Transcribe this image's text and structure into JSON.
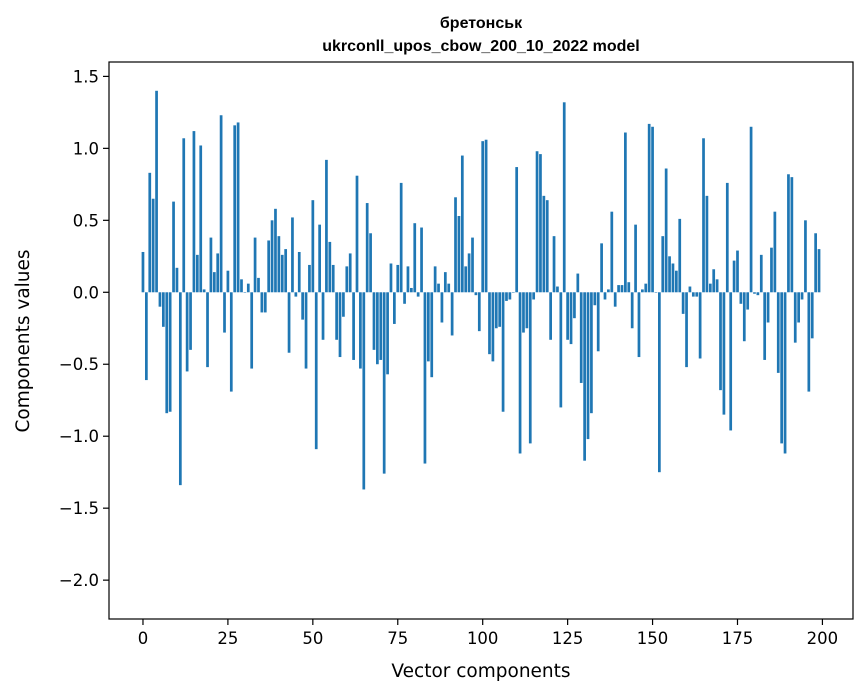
{
  "chart_data": {
    "type": "bar",
    "title_line1": "бретонськ",
    "title_line2": "ukrconll_upos_cbow_200_10_2022 model",
    "xlabel": "Vector components",
    "ylabel": "Components values",
    "xlim": [
      -10,
      209
    ],
    "ylim": [
      -2.27,
      1.6
    ],
    "x_ticks": [
      0,
      25,
      50,
      75,
      100,
      125,
      150,
      175,
      200
    ],
    "y_ticks": [
      -2.0,
      -1.5,
      -1.0,
      -0.5,
      0.0,
      0.5,
      1.0,
      1.5
    ],
    "x_tick_labels": [
      "0",
      "25",
      "50",
      "75",
      "100",
      "125",
      "150",
      "175",
      "200"
    ],
    "y_tick_labels": [
      "−2.0",
      "−1.5",
      "−1.0",
      "−0.5",
      "0.0",
      "0.5",
      "1.0",
      "1.5"
    ],
    "bar_color": "#1f77b4",
    "grid": false,
    "x": [
      0,
      1,
      2,
      3,
      4,
      5,
      6,
      7,
      8,
      9,
      10,
      11,
      12,
      13,
      14,
      15,
      16,
      17,
      18,
      19,
      20,
      21,
      22,
      23,
      24,
      25,
      26,
      27,
      28,
      29,
      30,
      31,
      32,
      33,
      34,
      35,
      36,
      37,
      38,
      39,
      40,
      41,
      42,
      43,
      44,
      45,
      46,
      47,
      48,
      49,
      50,
      51,
      52,
      53,
      54,
      55,
      56,
      57,
      58,
      59,
      60,
      61,
      62,
      63,
      64,
      65,
      66,
      67,
      68,
      69,
      70,
      71,
      72,
      73,
      74,
      75,
      76,
      77,
      78,
      79,
      80,
      81,
      82,
      83,
      84,
      85,
      86,
      87,
      88,
      89,
      90,
      91,
      92,
      93,
      94,
      95,
      96,
      97,
      98,
      99,
      100,
      101,
      102,
      103,
      104,
      105,
      106,
      107,
      108,
      109,
      110,
      111,
      112,
      113,
      114,
      115,
      116,
      117,
      118,
      119,
      120,
      121,
      122,
      123,
      124,
      125,
      126,
      127,
      128,
      129,
      130,
      131,
      132,
      133,
      134,
      135,
      136,
      137,
      138,
      139,
      140,
      141,
      142,
      143,
      144,
      145,
      146,
      147,
      148,
      149,
      150,
      151,
      152,
      153,
      154,
      155,
      156,
      157,
      158,
      159,
      160,
      161,
      162,
      163,
      164,
      165,
      166,
      167,
      168,
      169,
      170,
      171,
      172,
      173,
      174,
      175,
      176,
      177,
      178,
      179,
      180,
      181,
      182,
      183,
      184,
      185,
      186,
      187,
      188,
      189,
      190,
      191,
      192,
      193,
      194,
      195,
      196,
      197,
      198,
      199
    ],
    "values": [
      0.28,
      -0.61,
      0.83,
      0.65,
      1.4,
      -0.1,
      -0.24,
      -0.84,
      -0.83,
      0.63,
      0.17,
      -1.34,
      1.07,
      -0.55,
      -0.4,
      1.12,
      0.26,
      1.02,
      0.02,
      -0.52,
      0.38,
      0.14,
      0.27,
      1.23,
      -0.28,
      0.15,
      -0.69,
      1.16,
      1.18,
      0.09,
      0.0,
      0.06,
      -0.53,
      0.38,
      0.1,
      -0.14,
      -0.14,
      0.36,
      0.5,
      0.58,
      0.39,
      0.26,
      0.3,
      -0.42,
      0.52,
      -0.03,
      0.28,
      -0.19,
      -0.53,
      0.19,
      0.64,
      -1.09,
      0.47,
      -0.33,
      0.92,
      0.35,
      0.19,
      -0.33,
      -0.45,
      -0.17,
      0.18,
      0.27,
      -0.47,
      0.81,
      -0.53,
      -1.37,
      0.62,
      0.41,
      -0.4,
      -0.5,
      -0.47,
      -1.26,
      -0.57,
      0.2,
      -0.22,
      0.19,
      0.76,
      -0.08,
      0.18,
      0.03,
      0.48,
      -0.03,
      0.45,
      -1.19,
      -0.48,
      -0.59,
      0.18,
      0.06,
      -0.21,
      0.14,
      0.06,
      -0.3,
      0.66,
      0.53,
      0.95,
      0.18,
      0.27,
      0.38,
      -0.02,
      -0.27,
      1.05,
      1.06,
      -0.43,
      -0.48,
      -0.25,
      -0.24,
      -0.83,
      -0.06,
      -0.05,
      0.0,
      0.87,
      -1.12,
      -0.28,
      -0.25,
      -1.05,
      -0.05,
      0.98,
      0.96,
      0.67,
      0.64,
      -0.33,
      0.39,
      0.04,
      -0.8,
      1.32,
      -0.33,
      -0.36,
      -0.18,
      0.13,
      -0.63,
      -1.17,
      -1.02,
      -0.84,
      -0.09,
      -0.41,
      0.34,
      -0.05,
      0.02,
      0.56,
      -0.1,
      0.05,
      0.05,
      1.11,
      0.07,
      -0.25,
      0.47,
      -0.45,
      0.02,
      0.06,
      1.17,
      1.15,
      0.0,
      -1.25,
      0.39,
      0.86,
      0.25,
      0.2,
      0.15,
      0.51,
      -0.15,
      -0.52,
      0.04,
      -0.03,
      -0.03,
      -0.46,
      1.07,
      0.67,
      0.06,
      0.16,
      0.09,
      -0.68,
      -0.85,
      0.76,
      -0.96,
      0.22,
      0.29,
      -0.08,
      -0.34,
      -0.12,
      1.15,
      -0.01,
      -0.02,
      0.26,
      -0.47,
      -0.21,
      0.31,
      0.56,
      -0.56,
      -1.05,
      -1.12,
      0.82,
      0.8,
      -0.35,
      -0.21,
      -0.05,
      0.5,
      -0.69,
      -0.32,
      0.41,
      0.3
    ]
  }
}
